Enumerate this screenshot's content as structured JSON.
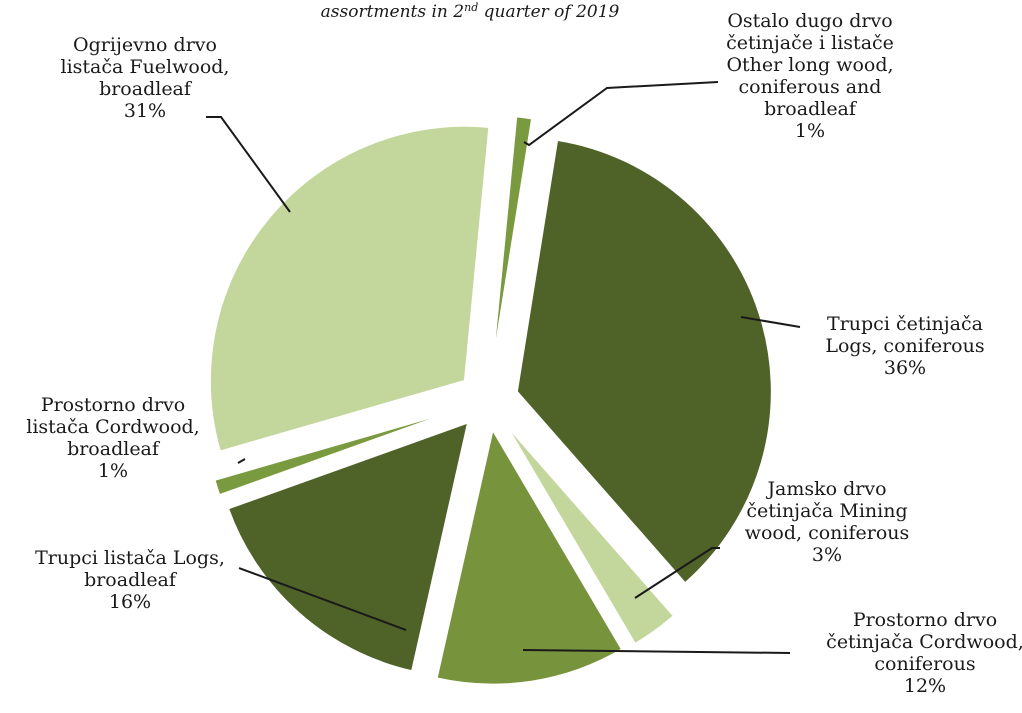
{
  "chart_data": {
    "type": "pie",
    "title": "assortments in 2nd quarter of 2019",
    "title_parts": {
      "before": "assortments in 2",
      "superscript": "nd",
      "after": " quarter of 2019"
    },
    "slices": [
      {
        "label_lines": [
          "Ostalo dugo drvo",
          "četinjače i listače",
          "Other long wood,",
          "coniferous and",
          "broadleaf"
        ],
        "percent_label": "1%",
        "value": 1,
        "color": "#7a9a3f"
      },
      {
        "label_lines": [
          "Trupci četinjača",
          "Logs, coniferous"
        ],
        "percent_label": "36%",
        "value": 36,
        "color": "#4f6228"
      },
      {
        "label_lines": [
          "Jamsko drvo",
          "četinjača Mining",
          "wood, coniferous"
        ],
        "percent_label": "3%",
        "value": 3,
        "color": "#c3d69b"
      },
      {
        "label_lines": [
          "Prostorno drvo",
          "četinjača Cordwood,",
          "coniferous"
        ],
        "percent_label": "12%",
        "value": 12,
        "color": "#77933c"
      },
      {
        "label_lines": [
          "Trupci listača Logs,",
          "broadleaf"
        ],
        "percent_label": "16%",
        "value": 16,
        "color": "#4f6228"
      },
      {
        "label_lines": [
          "Prostorno drvo",
          "listača Cordwood,",
          "broadleaf"
        ],
        "percent_label": "1%",
        "value": 1,
        "color": "#7a9a3f"
      },
      {
        "label_lines": [
          "Ogrijevno drvo",
          "listača  Fuelwood,",
          "broadleaf"
        ],
        "percent_label": "31%",
        "value": 31,
        "color": "#c3d69b"
      }
    ]
  }
}
